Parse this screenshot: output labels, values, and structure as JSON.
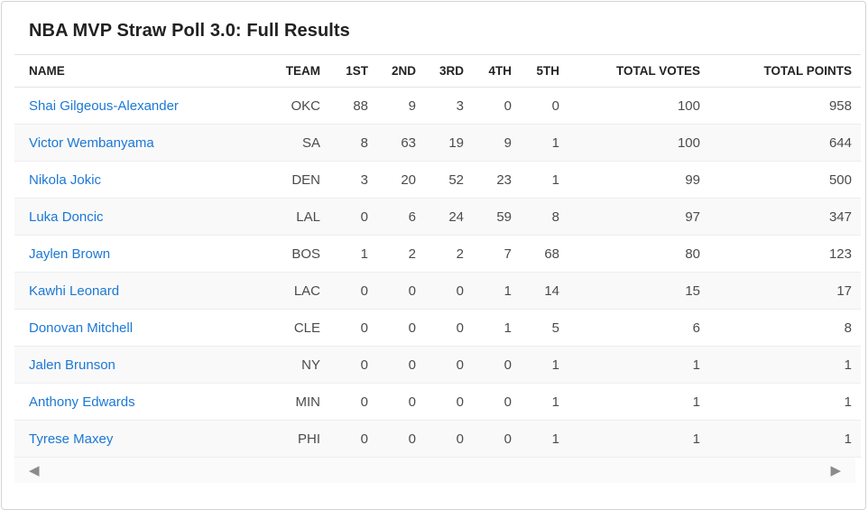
{
  "title": "NBA MVP Straw Poll 3.0: Full Results",
  "colors": {
    "link_blue": "#1b78d5",
    "header_text": "#222222",
    "cell_text": "#4b4b4b",
    "stripe": "#f9f9f9",
    "card_border": "#d2d3d5",
    "divider": "#ededed",
    "arrow_gray": "#8b8b8b"
  },
  "table": {
    "columns": [
      "NAME",
      "TEAM",
      "1ST",
      "2ND",
      "3RD",
      "4TH",
      "5TH",
      "TOTAL VOTES",
      "TOTAL POINTS"
    ],
    "rows": [
      {
        "name": "Shai Gilgeous-Alexander",
        "team": "OKC",
        "first": "88",
        "second": "9",
        "third": "3",
        "fourth": "0",
        "fifth": "0",
        "total_votes": "100",
        "total_points": "958"
      },
      {
        "name": "Victor Wembanyama",
        "team": "SA",
        "first": "8",
        "second": "63",
        "third": "19",
        "fourth": "9",
        "fifth": "1",
        "total_votes": "100",
        "total_points": "644"
      },
      {
        "name": "Nikola Jokic",
        "team": "DEN",
        "first": "3",
        "second": "20",
        "third": "52",
        "fourth": "23",
        "fifth": "1",
        "total_votes": "99",
        "total_points": "500"
      },
      {
        "name": "Luka Doncic",
        "team": "LAL",
        "first": "0",
        "second": "6",
        "third": "24",
        "fourth": "59",
        "fifth": "8",
        "total_votes": "97",
        "total_points": "347"
      },
      {
        "name": "Jaylen Brown",
        "team": "BOS",
        "first": "1",
        "second": "2",
        "third": "2",
        "fourth": "7",
        "fifth": "68",
        "total_votes": "80",
        "total_points": "123"
      },
      {
        "name": "Kawhi Leonard",
        "team": "LAC",
        "first": "0",
        "second": "0",
        "third": "0",
        "fourth": "1",
        "fifth": "14",
        "total_votes": "15",
        "total_points": "17"
      },
      {
        "name": "Donovan Mitchell",
        "team": "CLE",
        "first": "0",
        "second": "0",
        "third": "0",
        "fourth": "1",
        "fifth": "5",
        "total_votes": "6",
        "total_points": "8"
      },
      {
        "name": "Jalen Brunson",
        "team": "NY",
        "first": "0",
        "second": "0",
        "third": "0",
        "fourth": "0",
        "fifth": "1",
        "total_votes": "1",
        "total_points": "1"
      },
      {
        "name": "Anthony Edwards",
        "team": "MIN",
        "first": "0",
        "second": "0",
        "third": "0",
        "fourth": "0",
        "fifth": "1",
        "total_votes": "1",
        "total_points": "1"
      },
      {
        "name": "Tyrese Maxey",
        "team": "PHI",
        "first": "0",
        "second": "0",
        "third": "0",
        "fourth": "0",
        "fifth": "1",
        "total_votes": "1",
        "total_points": "1"
      }
    ]
  },
  "scrollbar": {
    "left_arrow": "◀",
    "right_arrow": "▶"
  }
}
